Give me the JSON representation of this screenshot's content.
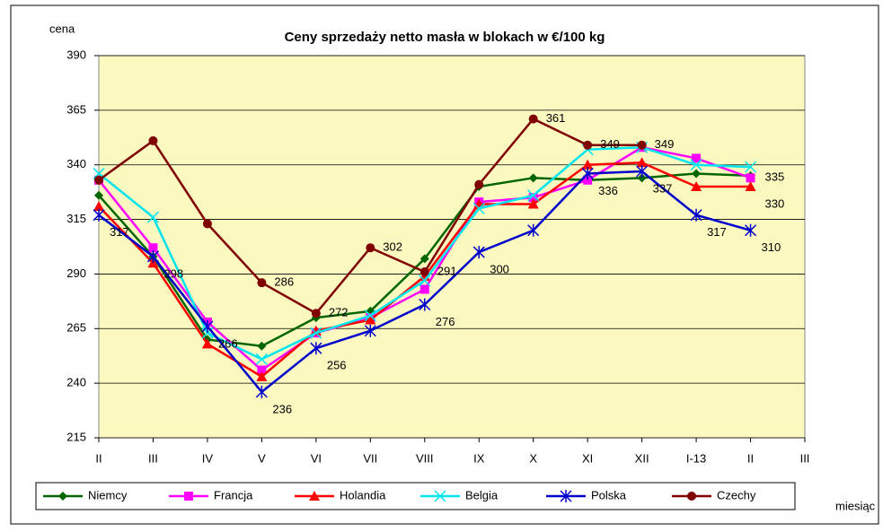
{
  "chart_data": {
    "type": "line",
    "title": "Ceny sprzedaży netto masła w blokach w €/100 kg",
    "y_label": "cena",
    "x_label": "miesiąc",
    "categories": [
      "II",
      "III",
      "IV",
      "V",
      "VI",
      "VII",
      "VIII",
      "IX",
      "X",
      "XI",
      "XII",
      "I-13",
      "II",
      "III"
    ],
    "ylim": [
      215,
      390
    ],
    "yticks": [
      215,
      240,
      265,
      290,
      315,
      340,
      365,
      390
    ],
    "grid": true,
    "legend": "bottom",
    "series": [
      {
        "name": "Niemcy",
        "color": "#006600",
        "marker": "diamond",
        "values": [
          326,
          298,
          260,
          257,
          270,
          273,
          297,
          330,
          334,
          333,
          334,
          336,
          335,
          null
        ]
      },
      {
        "name": "Francja",
        "color": "#ff00ff",
        "marker": "square",
        "values": [
          333,
          302,
          268,
          246,
          263,
          270,
          283,
          323,
          325,
          333,
          348,
          343,
          334,
          null
        ]
      },
      {
        "name": "Holandia",
        "color": "#ff0000",
        "marker": "triangle",
        "values": [
          321,
          295,
          258,
          243,
          264,
          269,
          289,
          322,
          322,
          340,
          341,
          330,
          330,
          null
        ]
      },
      {
        "name": "Belgia",
        "color": "#00e5ee",
        "marker": "x",
        "values": [
          336,
          316,
          263,
          251,
          263,
          271,
          287,
          320,
          326,
          347,
          348,
          340,
          339,
          null
        ]
      },
      {
        "name": "Polska",
        "color": "#0000cc",
        "marker": "star",
        "values": [
          317,
          298,
          266,
          236,
          256,
          264,
          276,
          300,
          310,
          336,
          337,
          317,
          310,
          null
        ]
      },
      {
        "name": "Czechy",
        "color": "#800000",
        "marker": "circle",
        "values": [
          333,
          351,
          313,
          286,
          272,
          302,
          291,
          331,
          361,
          349,
          349,
          null,
          null,
          null
        ]
      }
    ]
  }
}
